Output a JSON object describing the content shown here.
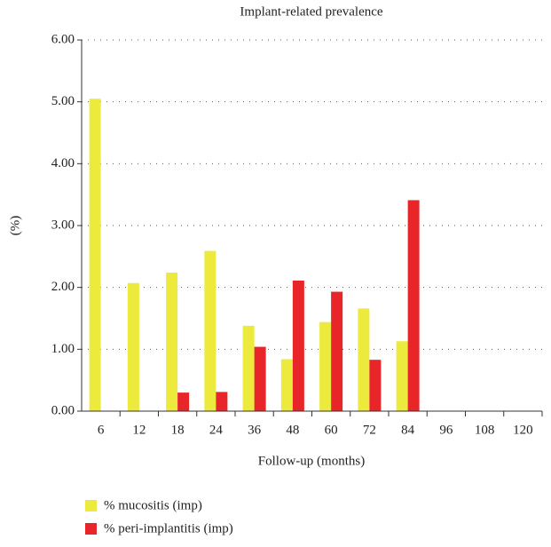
{
  "chart_data": {
    "type": "bar",
    "title": "Implant-related prevalence",
    "x_label": "Follow-up (months)",
    "y_label": "(%)",
    "categories": [
      "6",
      "12",
      "18",
      "24",
      "36",
      "48",
      "60",
      "72",
      "84",
      "96",
      "108",
      "120"
    ],
    "series": [
      {
        "name": "% mucositis (imp)",
        "color": "#ecea3c",
        "values": [
          5.05,
          2.07,
          2.24,
          2.59,
          1.38,
          0.84,
          1.44,
          1.66,
          1.13,
          0,
          0,
          0
        ]
      },
      {
        "name": "% peri-implantitis (imp)",
        "color": "#e8262a",
        "values": [
          0,
          0,
          0.3,
          0.31,
          1.04,
          2.11,
          1.93,
          0.83,
          3.41,
          0,
          0,
          0
        ]
      }
    ],
    "ylim": [
      0,
      6
    ],
    "yticks": [
      {
        "value": 0,
        "label": "0.00"
      },
      {
        "value": 1,
        "label": "1.00"
      },
      {
        "value": 2,
        "label": "2.00"
      },
      {
        "value": 3,
        "label": "3.00"
      },
      {
        "value": 4,
        "label": "4.00"
      },
      {
        "value": 5,
        "label": "5.00"
      },
      {
        "value": 6,
        "label": "6.00"
      }
    ],
    "grid": true,
    "legend": "bottom-left"
  }
}
